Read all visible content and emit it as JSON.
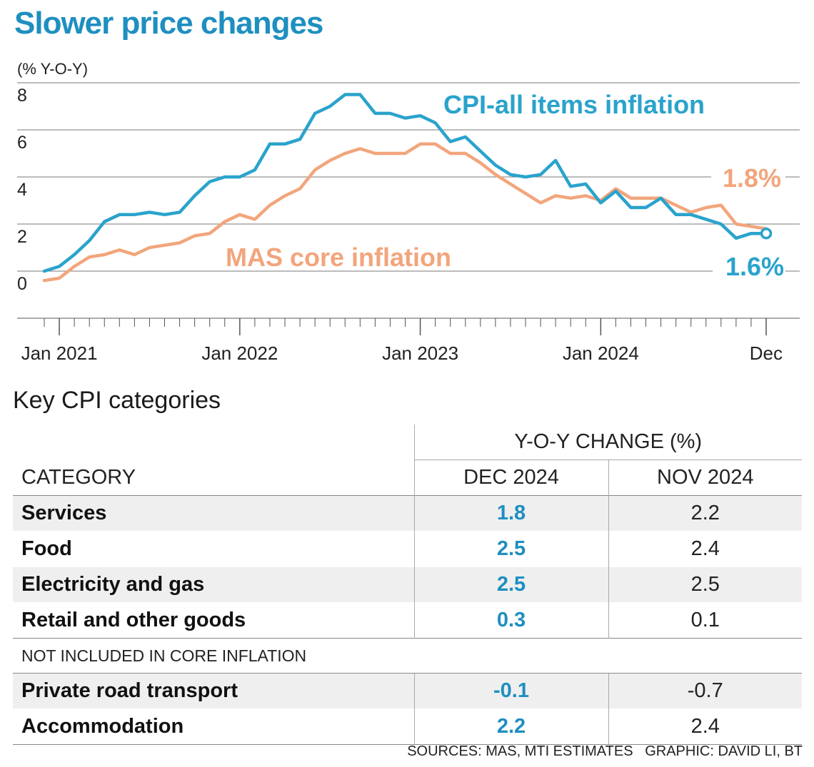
{
  "title": "Slower price changes",
  "chart_data": {
    "type": "line",
    "ylabel": "(% Y-O-Y)",
    "ylim": [
      -2,
      9
    ],
    "yticks": [
      0,
      2,
      4,
      6,
      8
    ],
    "xticklabels": [
      "Jan 2021",
      "Jan 2022",
      "Jan 2023",
      "Jan 2024",
      "Dec"
    ],
    "x_start": "2020-12",
    "x_end": "2024-12",
    "series": [
      {
        "name": "CPI-all items inflation",
        "color": "#2aa3cc",
        "end_label": "1.6%",
        "values": [
          0.0,
          0.2,
          0.7,
          1.3,
          2.1,
          2.4,
          2.4,
          2.5,
          2.4,
          2.5,
          3.2,
          3.8,
          4.0,
          4.0,
          4.3,
          5.4,
          5.4,
          5.6,
          6.7,
          7.0,
          7.5,
          7.5,
          6.7,
          6.7,
          6.5,
          6.6,
          6.3,
          5.5,
          5.7,
          5.1,
          4.5,
          4.1,
          4.0,
          4.1,
          4.7,
          3.6,
          3.7,
          2.9,
          3.4,
          2.7,
          2.7,
          3.1,
          2.4,
          2.4,
          2.2,
          2.0,
          1.4,
          1.6,
          1.6
        ]
      },
      {
        "name": "MAS core inflation",
        "color": "#f2a57c",
        "end_label": "1.8%",
        "values": [
          -0.4,
          -0.3,
          0.2,
          0.6,
          0.7,
          0.9,
          0.7,
          1.0,
          1.1,
          1.2,
          1.5,
          1.6,
          2.1,
          2.4,
          2.2,
          2.8,
          3.2,
          3.5,
          4.3,
          4.7,
          5.0,
          5.2,
          5.0,
          5.0,
          5.0,
          5.4,
          5.4,
          5.0,
          5.0,
          4.6,
          4.1,
          3.7,
          3.3,
          2.9,
          3.2,
          3.1,
          3.2,
          3.0,
          3.5,
          3.1,
          3.1,
          3.1,
          2.8,
          2.5,
          2.7,
          2.8,
          2.0,
          1.9,
          1.8
        ]
      }
    ]
  },
  "table": {
    "subtitle": "Key CPI categories",
    "group_header": "Y-O-Y CHANGE (%)",
    "col_category": "CATEGORY",
    "col_dec": "DEC 2024",
    "col_nov": "NOV 2024",
    "rows": [
      {
        "category": "Services",
        "dec": "1.8",
        "nov": "2.2"
      },
      {
        "category": "Food",
        "dec": "2.5",
        "nov": "2.4"
      },
      {
        "category": "Electricity and gas",
        "dec": "2.5",
        "nov": "2.5"
      },
      {
        "category": "Retail and other goods",
        "dec": "0.3",
        "nov": "0.1"
      }
    ],
    "section_label": "NOT INCLUDED IN CORE INFLATION",
    "rows2": [
      {
        "category": "Private road transport",
        "dec": "-0.1",
        "nov": "-0.7"
      },
      {
        "category": "Accommodation",
        "dec": "2.2",
        "nov": "2.4"
      }
    ]
  },
  "footer": {
    "sources": "SOURCES: MAS, MTI ESTIMATES",
    "graphic": "GRAPHIC: DAVID LI, BT"
  }
}
